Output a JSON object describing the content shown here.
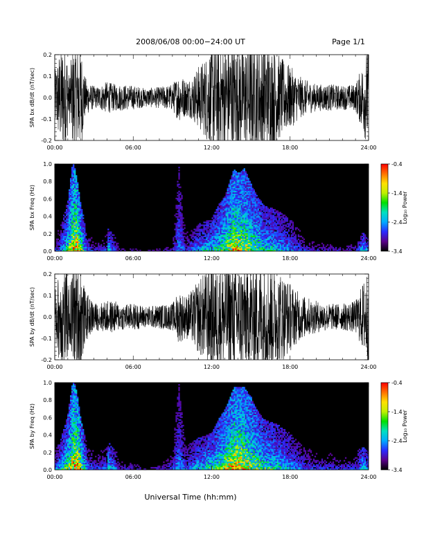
{
  "header": {
    "title": "2008/06/08  00:00−24:00 UT",
    "page": "Page 1/1"
  },
  "xaxis": {
    "label": "Universal Time (hh:mm)",
    "ticks": [
      "00:00",
      "06:00",
      "12:00",
      "18:00",
      "24:00"
    ],
    "range_hours": [
      0,
      24
    ]
  },
  "colors": {
    "background": "#ffffff",
    "frame": "#000000",
    "plot_fill": "#000000",
    "colormap": [
      "#000000",
      "#5a008a",
      "#2a2aff",
      "#00aaff",
      "#00e0c0",
      "#00e000",
      "#c0f000",
      "#ffe000",
      "#ff7000",
      "#ff0000"
    ]
  },
  "chart_data": [
    {
      "type": "line",
      "ylabel": "SPA bx dB/dt (nT/sec)",
      "ylim": [
        -0.2,
        0.2
      ],
      "yticks": [
        "-0.2",
        "-0.1",
        "0.0",
        "0.1",
        "0.2"
      ],
      "envelope": {
        "x_hours": [
          0,
          0.5,
          0.9,
          1.1,
          1.4,
          1.7,
          2.0,
          2.3,
          2.7,
          3.2,
          4.0,
          4.6,
          5.0,
          6.0,
          7.0,
          8.0,
          9.0,
          9.5,
          10.0,
          10.5,
          11.0,
          11.5,
          12.0,
          13.0,
          13.5,
          14.0,
          15.0,
          16.0,
          16.5,
          17.0,
          17.5,
          18.0,
          18.5,
          19.0,
          20.0,
          21.0,
          22.0,
          23.0,
          23.5,
          24.0
        ],
        "amplitude": [
          0.1,
          0.2,
          0.2,
          0.08,
          0.2,
          0.2,
          0.2,
          0.08,
          0.05,
          0.04,
          0.06,
          0.05,
          0.05,
          0.045,
          0.035,
          0.04,
          0.05,
          0.09,
          0.07,
          0.08,
          0.12,
          0.15,
          0.2,
          0.2,
          0.2,
          0.2,
          0.2,
          0.2,
          0.2,
          0.17,
          0.14,
          0.12,
          0.09,
          0.07,
          0.05,
          0.05,
          0.045,
          0.05,
          0.12,
          0.2
        ]
      }
    },
    {
      "type": "heatmap",
      "ylabel": "SPA bx Freq (Hz)",
      "ylim": [
        0,
        1.0
      ],
      "yticks": [
        "0.0",
        "0.2",
        "0.4",
        "0.6",
        "0.8",
        "1.0"
      ],
      "colorbar": {
        "label": "Log₁₀ Power",
        "ticks": [
          "-0.4",
          "-1.4",
          "-2.4",
          "-3.4"
        ],
        "range": [
          -3.4,
          -0.4
        ]
      },
      "activity": {
        "x_hours": [
          0,
          0.5,
          1.0,
          1.4,
          1.7,
          2.0,
          2.5,
          3.0,
          4.0,
          4.1,
          5.0,
          6.0,
          7.0,
          8.0,
          9.0,
          9.5,
          10.0,
          11.0,
          12.0,
          12.5,
          13.0,
          13.7,
          14.0,
          14.5,
          15.0,
          15.5,
          16.0,
          17.0,
          18.0,
          19.0,
          20.0,
          21.0,
          22.0,
          23.0,
          23.6,
          24.0
        ],
        "intensity": [
          0.2,
          0.35,
          0.55,
          0.8,
          0.95,
          0.7,
          0.3,
          0.2,
          0.25,
          0.5,
          0.15,
          0.15,
          0.12,
          0.15,
          0.2,
          0.35,
          0.25,
          0.4,
          0.5,
          0.55,
          0.65,
          0.8,
          0.8,
          0.7,
          0.65,
          0.6,
          0.5,
          0.45,
          0.35,
          0.25,
          0.2,
          0.2,
          0.18,
          0.2,
          0.5,
          0.35
        ],
        "max_freq_hz": [
          0.15,
          0.3,
          0.55,
          1.0,
          0.8,
          0.5,
          0.2,
          0.15,
          0.2,
          0.25,
          0.12,
          0.12,
          0.1,
          0.12,
          0.15,
          0.95,
          0.2,
          0.3,
          0.35,
          0.5,
          0.6,
          0.9,
          0.85,
          0.9,
          0.75,
          0.6,
          0.5,
          0.45,
          0.35,
          0.2,
          0.15,
          0.15,
          0.15,
          0.15,
          0.2,
          0.15
        ]
      }
    },
    {
      "type": "line",
      "ylabel": "SPA by dB/dt (nT/sec)",
      "ylim": [
        -0.2,
        0.2
      ],
      "yticks": [
        "-0.2",
        "-0.1",
        "0.0",
        "0.1",
        "0.2"
      ],
      "envelope": {
        "x_hours": [
          0,
          0.5,
          0.9,
          1.1,
          1.4,
          1.7,
          2.0,
          2.3,
          2.7,
          3.2,
          4.0,
          4.6,
          5.0,
          6.0,
          7.0,
          8.0,
          9.0,
          9.5,
          10.0,
          10.5,
          11.0,
          11.5,
          12.0,
          13.0,
          13.5,
          14.0,
          15.0,
          16.0,
          16.5,
          17.0,
          17.5,
          18.0,
          18.5,
          19.0,
          20.0,
          21.0,
          22.0,
          23.0,
          23.5,
          24.0
        ],
        "amplitude": [
          0.1,
          0.2,
          0.2,
          0.1,
          0.2,
          0.2,
          0.2,
          0.1,
          0.07,
          0.05,
          0.06,
          0.06,
          0.05,
          0.05,
          0.04,
          0.045,
          0.05,
          0.1,
          0.08,
          0.1,
          0.14,
          0.17,
          0.2,
          0.2,
          0.2,
          0.2,
          0.2,
          0.2,
          0.2,
          0.18,
          0.16,
          0.13,
          0.1,
          0.08,
          0.06,
          0.05,
          0.05,
          0.06,
          0.12,
          0.2
        ]
      }
    },
    {
      "type": "heatmap",
      "ylabel": "SPA by Freq (Hz)",
      "ylim": [
        0,
        1.0
      ],
      "yticks": [
        "0.0",
        "0.2",
        "0.4",
        "0.6",
        "0.8",
        "1.0"
      ],
      "colorbar": {
        "label": "Log₁₀ Power",
        "ticks": [
          "-0.4",
          "-1.4",
          "-2.4",
          "-3.4"
        ],
        "range": [
          -3.4,
          -0.4
        ]
      },
      "activity": {
        "x_hours": [
          0,
          0.5,
          1.0,
          1.4,
          1.7,
          2.0,
          2.5,
          3.0,
          4.0,
          4.1,
          5.0,
          6.0,
          7.0,
          8.0,
          9.0,
          9.5,
          10.0,
          11.0,
          12.0,
          12.5,
          13.0,
          13.7,
          14.0,
          14.5,
          15.0,
          15.5,
          16.0,
          17.0,
          18.0,
          19.0,
          20.0,
          21.0,
          22.0,
          23.0,
          23.6,
          24.0
        ],
        "intensity": [
          0.3,
          0.45,
          0.6,
          0.85,
          0.95,
          0.75,
          0.35,
          0.25,
          0.3,
          0.55,
          0.2,
          0.2,
          0.15,
          0.2,
          0.25,
          0.35,
          0.3,
          0.45,
          0.55,
          0.6,
          0.7,
          0.85,
          0.85,
          0.8,
          0.7,
          0.65,
          0.55,
          0.5,
          0.4,
          0.3,
          0.25,
          0.25,
          0.22,
          0.25,
          0.55,
          0.4
        ],
        "max_freq_hz": [
          0.2,
          0.35,
          0.6,
          1.0,
          0.85,
          0.55,
          0.25,
          0.2,
          0.25,
          0.3,
          0.15,
          0.15,
          0.12,
          0.15,
          0.18,
          0.95,
          0.25,
          0.35,
          0.4,
          0.55,
          0.65,
          0.9,
          0.9,
          0.9,
          0.8,
          0.65,
          0.55,
          0.5,
          0.4,
          0.25,
          0.2,
          0.2,
          0.2,
          0.2,
          0.25,
          0.2
        ]
      }
    }
  ]
}
